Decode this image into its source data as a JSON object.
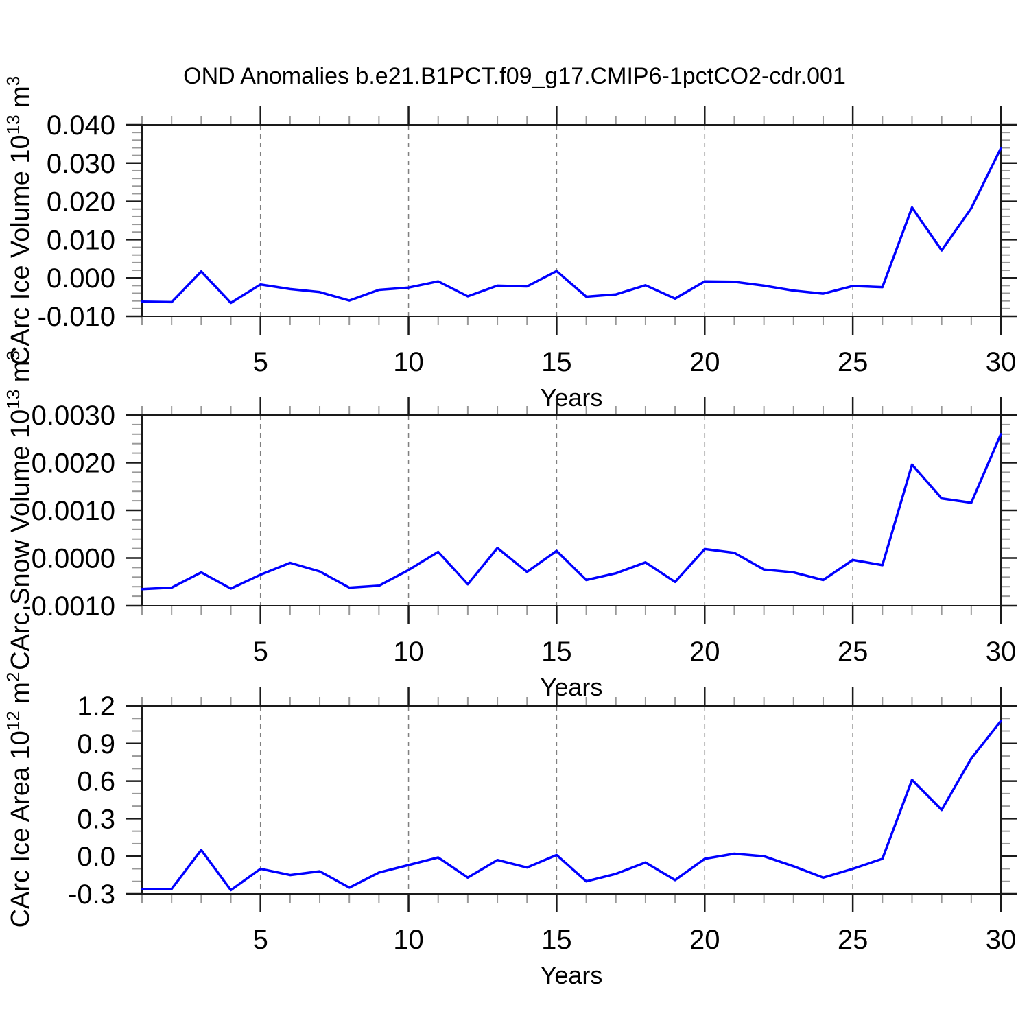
{
  "title": "OND Anomalies b.e21.B1PCT.f09_g17.CMIP6-1pctCO2-cdr.001",
  "line_color": "#0000ff",
  "grid_color": "#808080",
  "axis_color": "#1a1a1a",
  "minor_tick_color": "#999999",
  "chart_data": [
    {
      "type": "line",
      "name": "ice-volume",
      "ylabel": "CArc Ice Volume 10^13 m^3",
      "xlabel": "Years",
      "x": [
        1,
        2,
        3,
        4,
        5,
        6,
        7,
        8,
        9,
        10,
        11,
        12,
        13,
        14,
        15,
        16,
        17,
        18,
        19,
        20,
        21,
        22,
        23,
        24,
        25,
        26,
        27,
        28,
        29,
        30
      ],
      "values": [
        -0.0062,
        -0.0063,
        0.0017,
        -0.0065,
        -0.0017,
        -0.0029,
        -0.0037,
        -0.0059,
        -0.0031,
        -0.0025,
        -0.0009,
        -0.0048,
        -0.002,
        -0.0022,
        0.0018,
        -0.0049,
        -0.0043,
        -0.0019,
        -0.0054,
        -0.0009,
        -0.001,
        -0.002,
        -0.0033,
        -0.0041,
        -0.0021,
        -0.0024,
        0.0184,
        0.0072,
        0.0182,
        0.0339
      ],
      "ylim": [
        -0.01,
        0.04
      ],
      "ytick_values": [
        -0.01,
        0.0,
        0.01,
        0.02,
        0.03,
        0.04
      ],
      "ytick_labels": [
        "-0.010",
        "0.000",
        "0.010",
        "0.020",
        "0.030",
        "0.040"
      ],
      "yminor_step": 0.002,
      "xticks": [
        5,
        10,
        15,
        20,
        25,
        30
      ],
      "xtick_labels": [
        "5",
        "10",
        "15",
        "20",
        "25",
        "30"
      ],
      "grid_x": [
        5,
        10,
        15,
        20,
        25
      ],
      "grid": "vertical-dashed"
    },
    {
      "type": "line",
      "name": "snow-volume",
      "ylabel": "CArc Snow Volume 10^13 m^3",
      "xlabel": "Years",
      "x": [
        1,
        2,
        3,
        4,
        5,
        6,
        7,
        8,
        9,
        10,
        11,
        12,
        13,
        14,
        15,
        16,
        17,
        18,
        19,
        20,
        21,
        22,
        23,
        24,
        25,
        26,
        27,
        28,
        29,
        30
      ],
      "values": [
        -0.00065,
        -0.00062,
        -0.0003,
        -0.00064,
        -0.00035,
        -0.0001,
        -0.00028,
        -0.00062,
        -0.00058,
        -0.00025,
        0.00013,
        -0.00055,
        0.00021,
        -0.00029,
        0.00015,
        -0.00046,
        -0.00032,
        -9e-05,
        -0.0005,
        0.00019,
        0.00011,
        -0.00024,
        -0.0003,
        -0.00046,
        -4e-05,
        -0.00015,
        0.00196,
        0.00125,
        0.00116,
        0.0026
      ],
      "ylim": [
        -0.001,
        0.003
      ],
      "ytick_values": [
        -0.001,
        0.0,
        0.001,
        0.002,
        0.003
      ],
      "ytick_labels": [
        "-0.0010",
        "0.0000",
        "0.0010",
        "0.0020",
        "0.0030"
      ],
      "yminor_step": 0.0002,
      "xticks": [
        5,
        10,
        15,
        20,
        25,
        30
      ],
      "xtick_labels": [
        "5",
        "10",
        "15",
        "20",
        "25",
        "30"
      ],
      "grid_x": [
        5,
        10,
        15,
        20,
        25
      ],
      "grid": "vertical-dashed"
    },
    {
      "type": "line",
      "name": "ice-area",
      "ylabel": "CArc Ice Area 10^12 m^2",
      "xlabel": "Years",
      "x": [
        1,
        2,
        3,
        4,
        5,
        6,
        7,
        8,
        9,
        10,
        11,
        12,
        13,
        14,
        15,
        16,
        17,
        18,
        19,
        20,
        21,
        22,
        23,
        24,
        25,
        26,
        27,
        28,
        29,
        30
      ],
      "values": [
        -0.26,
        -0.26,
        0.05,
        -0.27,
        -0.1,
        -0.15,
        -0.12,
        -0.25,
        -0.13,
        -0.07,
        -0.01,
        -0.17,
        -0.03,
        -0.09,
        0.01,
        -0.2,
        -0.14,
        -0.05,
        -0.19,
        -0.02,
        0.02,
        0.0,
        -0.08,
        -0.17,
        -0.1,
        -0.02,
        0.61,
        0.37,
        0.78,
        1.08
      ],
      "ylim": [
        -0.3,
        1.2
      ],
      "ytick_values": [
        -0.3,
        0.0,
        0.3,
        0.6,
        0.9,
        1.2
      ],
      "ytick_labels": [
        "-0.3",
        "0.0",
        "0.3",
        "0.6",
        "0.9",
        "1.2"
      ],
      "yminor_step": 0.1,
      "xticks": [
        5,
        10,
        15,
        20,
        25,
        30
      ],
      "xtick_labels": [
        "5",
        "10",
        "15",
        "20",
        "25",
        "30"
      ],
      "grid_x": [
        5,
        10,
        15,
        20,
        25
      ],
      "grid": "vertical-dashed"
    }
  ]
}
